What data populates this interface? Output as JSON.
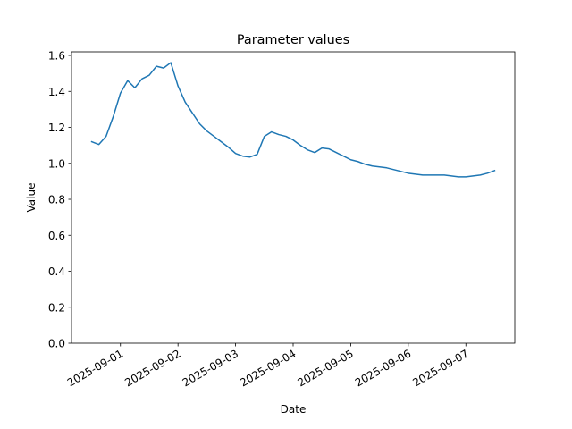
{
  "chart_data": {
    "type": "line",
    "title": "Parameter values",
    "x_label": "Date",
    "y_label": "Value",
    "x": [
      "2025-08-31T12:00",
      "2025-08-31T15:00",
      "2025-08-31T18:00",
      "2025-08-31T21:00",
      "2025-09-01T00:00",
      "2025-09-01T03:00",
      "2025-09-01T06:00",
      "2025-09-01T09:00",
      "2025-09-01T12:00",
      "2025-09-01T15:00",
      "2025-09-01T18:00",
      "2025-09-01T21:00",
      "2025-09-02T00:00",
      "2025-09-02T03:00",
      "2025-09-02T06:00",
      "2025-09-02T09:00",
      "2025-09-02T12:00",
      "2025-09-02T15:00",
      "2025-09-02T18:00",
      "2025-09-02T21:00",
      "2025-09-03T00:00",
      "2025-09-03T03:00",
      "2025-09-03T06:00",
      "2025-09-03T09:00",
      "2025-09-03T12:00",
      "2025-09-03T15:00",
      "2025-09-03T18:00",
      "2025-09-03T21:00",
      "2025-09-04T00:00",
      "2025-09-04T03:00",
      "2025-09-04T06:00",
      "2025-09-04T09:00",
      "2025-09-04T12:00",
      "2025-09-04T15:00",
      "2025-09-04T18:00",
      "2025-09-04T21:00",
      "2025-09-05T00:00",
      "2025-09-05T03:00",
      "2025-09-05T06:00",
      "2025-09-05T09:00",
      "2025-09-05T12:00",
      "2025-09-05T15:00",
      "2025-09-05T18:00",
      "2025-09-05T21:00",
      "2025-09-06T00:00",
      "2025-09-06T03:00",
      "2025-09-06T06:00",
      "2025-09-06T09:00",
      "2025-09-06T12:00",
      "2025-09-06T15:00",
      "2025-09-06T18:00",
      "2025-09-06T21:00",
      "2025-09-07T00:00",
      "2025-09-07T03:00",
      "2025-09-07T06:00",
      "2025-09-07T09:00",
      "2025-09-07T12:00"
    ],
    "values": [
      1.12,
      1.105,
      1.15,
      1.26,
      1.39,
      1.46,
      1.42,
      1.47,
      1.49,
      1.54,
      1.53,
      1.56,
      1.43,
      1.34,
      1.28,
      1.22,
      1.18,
      1.15,
      1.12,
      1.09,
      1.055,
      1.04,
      1.035,
      1.05,
      1.15,
      1.175,
      1.16,
      1.15,
      1.13,
      1.1,
      1.075,
      1.06,
      1.085,
      1.08,
      1.06,
      1.04,
      1.02,
      1.01,
      0.995,
      0.985,
      0.98,
      0.975,
      0.965,
      0.955,
      0.945,
      0.94,
      0.935,
      0.935,
      0.935,
      0.935,
      0.93,
      0.925,
      0.925,
      0.93,
      0.935,
      0.945,
      0.96
    ],
    "color": "#1f77b4",
    "xlim": [
      "2025-08-31T03:36",
      "2025-09-07T20:24"
    ],
    "xticks": [
      "2025-09-01",
      "2025-09-02",
      "2025-09-03",
      "2025-09-04",
      "2025-09-05",
      "2025-09-06",
      "2025-09-07"
    ],
    "ylim": [
      0,
      1.62
    ],
    "yticks": [
      {
        "value": 0,
        "label": "0.0"
      },
      {
        "value": 0.2,
        "label": "0.2"
      },
      {
        "value": 0.4,
        "label": "0.4"
      },
      {
        "value": 0.6,
        "label": "0.6"
      },
      {
        "value": 0.8,
        "label": "0.8"
      },
      {
        "value": 1,
        "label": "1.0"
      },
      {
        "value": 1.2,
        "label": "1.2"
      },
      {
        "value": 1.4,
        "label": "1.4"
      },
      {
        "value": 1.6,
        "label": "1.6"
      }
    ],
    "grid": false
  }
}
